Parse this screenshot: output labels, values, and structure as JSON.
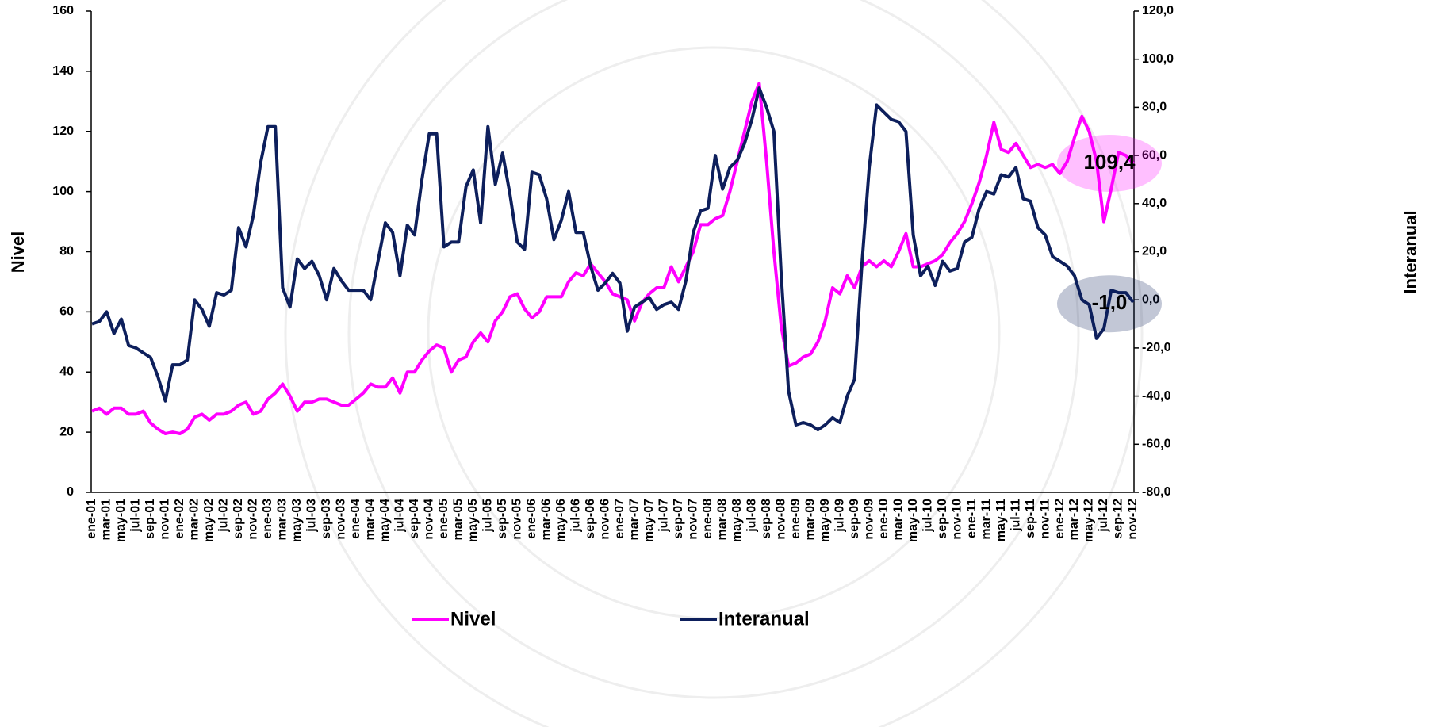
{
  "chart_data": {
    "type": "line",
    "ylabel": "Nivel",
    "y2label": "Interanual",
    "categories": [
      "ene-01",
      null,
      "mar-01",
      null,
      "may-01",
      null,
      "jul-01",
      null,
      "sep-01",
      null,
      "nov-01",
      null,
      "ene-02",
      null,
      "mar-02",
      null,
      "may-02",
      null,
      "jul-02",
      null,
      "sep-02",
      null,
      "nov-02",
      null,
      "ene-03",
      null,
      "mar-03",
      null,
      "may-03",
      null,
      "jul-03",
      null,
      "sep-03",
      null,
      "nov-03",
      null,
      "ene-04",
      null,
      "mar-04",
      null,
      "may-04",
      null,
      "jul-04",
      null,
      "sep-04",
      null,
      "nov-04",
      null,
      "ene-05",
      null,
      "mar-05",
      null,
      "may-05",
      null,
      "jul-05",
      null,
      "sep-05",
      null,
      "nov-05",
      null,
      "ene-06",
      null,
      "mar-06",
      null,
      "may-06",
      null,
      "jul-06",
      null,
      "sep-06",
      null,
      "nov-06",
      null,
      "ene-07",
      null,
      "mar-07",
      null,
      "may-07",
      null,
      "jul-07",
      null,
      "sep-07",
      null,
      "nov-07",
      null,
      "ene-08",
      null,
      "mar-08",
      null,
      "may-08",
      null,
      "jul-08",
      null,
      "sep-08",
      null,
      "nov-08",
      null,
      "ene-09",
      null,
      "mar-09",
      null,
      "may-09",
      null,
      "jul-09",
      null,
      "sep-09",
      null,
      "nov-09",
      null,
      "ene-10",
      null,
      "mar-10",
      null,
      "may-10",
      null,
      "jul-10",
      null,
      "sep-10",
      null,
      "nov-10",
      null,
      "ene-11",
      null,
      "mar-11",
      null,
      "may-11",
      null,
      "jul-11",
      null,
      "sep-11",
      null,
      "nov-11",
      null,
      "ene-12",
      null,
      "mar-12",
      null,
      "may-12",
      null,
      "jul-12",
      null,
      "sep-12",
      null,
      "nov-12"
    ],
    "ylim": [
      0,
      160
    ],
    "yticks": [
      0,
      20,
      40,
      60,
      80,
      100,
      120,
      140,
      160
    ],
    "y2lim": [
      -80,
      120
    ],
    "y2ticks": [
      {
        "value": -80,
        "label": "-80,0"
      },
      {
        "value": -60,
        "label": "-60,0"
      },
      {
        "value": -40,
        "label": "-40,0"
      },
      {
        "value": -20,
        "label": "-20,0"
      },
      {
        "value": 0,
        "label": "0,0"
      },
      {
        "value": 20,
        "label": "20,0"
      },
      {
        "value": 40,
        "label": "40,0"
      },
      {
        "value": 60,
        "label": "60,0"
      },
      {
        "value": 80,
        "label": "80,0"
      },
      {
        "value": 100,
        "label": "100,0"
      },
      {
        "value": 120,
        "label": "120,0"
      }
    ],
    "series": [
      {
        "name": "Nivel",
        "color": "#ff00ff",
        "axis": "y",
        "values": [
          27,
          28,
          26,
          28,
          28,
          26,
          26,
          27,
          23,
          21,
          19.5,
          20,
          19.5,
          21,
          25,
          26,
          24,
          26,
          26,
          27,
          29,
          30,
          26,
          27,
          31,
          33,
          36,
          32,
          27,
          30,
          30,
          31,
          31,
          30,
          29,
          29,
          31,
          33,
          36,
          35,
          35,
          38,
          33,
          40,
          40,
          44,
          47,
          49,
          48,
          40,
          44,
          45,
          50,
          53,
          50,
          57,
          60,
          65,
          66,
          61,
          58,
          60,
          65,
          65,
          65,
          70,
          73,
          72,
          76,
          73,
          70,
          66,
          65,
          64,
          57,
          63,
          66,
          68,
          68,
          75,
          70,
          75,
          80,
          89,
          89,
          91,
          92,
          100,
          110,
          120,
          130,
          136,
          110,
          80,
          55,
          42,
          43,
          45,
          46,
          50,
          57,
          68,
          66,
          72,
          68,
          75,
          77,
          75,
          77,
          75,
          80,
          86,
          75,
          75,
          76,
          77,
          79,
          83,
          86,
          90,
          96,
          103,
          112,
          123,
          114,
          113,
          116,
          112,
          108,
          109,
          108,
          109,
          106,
          110,
          118,
          125,
          120,
          110,
          90,
          101,
          113,
          112,
          109.4
        ],
        "value_labels": [
          null,
          null,
          null,
          null,
          null,
          null,
          null,
          null,
          null,
          null,
          null,
          null,
          null,
          null,
          null,
          null,
          null,
          null,
          null,
          null,
          null,
          null,
          null,
          null,
          null,
          null,
          null,
          null,
          null,
          null,
          null,
          null,
          null,
          null,
          null,
          null,
          null,
          null,
          null,
          null,
          null,
          null,
          null,
          null,
          null,
          null,
          null,
          null,
          null,
          null,
          null,
          null,
          null,
          null,
          null,
          null,
          null,
          null,
          null,
          null,
          null,
          null,
          null,
          null,
          null,
          null,
          null,
          null,
          null,
          null,
          null,
          null,
          null,
          null,
          null,
          null,
          null,
          null,
          null,
          null,
          null,
          null,
          null,
          null,
          null,
          null,
          null,
          null,
          null,
          null,
          null,
          null,
          null,
          null,
          null,
          null,
          null,
          null,
          null,
          null,
          null,
          null,
          null,
          null,
          null,
          null,
          null,
          null,
          null,
          null,
          null,
          null,
          null,
          null,
          null,
          null,
          null,
          null,
          null,
          null,
          null,
          null,
          null,
          null,
          null,
          null,
          null,
          null,
          null,
          null,
          null,
          null,
          null,
          null,
          null,
          null,
          null,
          null,
          null,
          null,
          null,
          null,
          "109,4"
        ]
      },
      {
        "name": "Interanual",
        "color": "#0d1f5c",
        "axis": "y2",
        "values": [
          -10,
          -9,
          -5,
          -14,
          -8,
          -19,
          -20,
          -22,
          -24,
          -32,
          -42,
          -27,
          -27,
          -25,
          0,
          -4,
          -11,
          3,
          2,
          4,
          30,
          22,
          35,
          57,
          72,
          72,
          5,
          -3,
          17,
          13,
          16,
          10,
          0,
          13,
          8,
          4,
          4,
          4,
          0,
          16,
          32,
          28,
          10,
          31,
          27,
          50,
          69,
          69,
          22,
          24,
          24,
          47,
          54,
          32,
          72,
          48,
          61,
          44,
          24,
          21,
          53,
          52,
          42,
          25,
          33,
          45,
          28,
          28,
          14,
          4,
          7,
          11,
          7,
          -13,
          -3,
          -1,
          1,
          -4,
          -2,
          -1,
          -4,
          8,
          28,
          37,
          38,
          60,
          46,
          55,
          58,
          65,
          75,
          88,
          80,
          70,
          10,
          -38,
          -52,
          -51,
          -52,
          -54,
          -52,
          -49,
          -51,
          -40,
          -33,
          15,
          55,
          81,
          78,
          75,
          74,
          70,
          27,
          10,
          14,
          6,
          16,
          12,
          13,
          24,
          26,
          38,
          45,
          44,
          52,
          51,
          55,
          42,
          41,
          30,
          27,
          18,
          16,
          14,
          10,
          0,
          -2,
          -16,
          -12,
          4,
          3,
          3,
          -1
        ],
        "value_labels": [
          null,
          null,
          null,
          null,
          null,
          null,
          null,
          null,
          null,
          null,
          null,
          null,
          null,
          null,
          null,
          null,
          null,
          null,
          null,
          null,
          null,
          null,
          null,
          null,
          null,
          null,
          null,
          null,
          null,
          null,
          null,
          null,
          null,
          null,
          null,
          null,
          null,
          null,
          null,
          null,
          null,
          null,
          null,
          null,
          null,
          null,
          null,
          null,
          null,
          null,
          null,
          null,
          null,
          null,
          null,
          null,
          null,
          null,
          null,
          null,
          null,
          null,
          null,
          null,
          null,
          null,
          null,
          null,
          null,
          null,
          null,
          null,
          null,
          null,
          null,
          null,
          null,
          null,
          null,
          null,
          null,
          null,
          null,
          null,
          null,
          null,
          null,
          null,
          null,
          null,
          null,
          null,
          null,
          null,
          null,
          null,
          null,
          null,
          null,
          null,
          null,
          null,
          null,
          null,
          null,
          null,
          null,
          null,
          null,
          null,
          null,
          null,
          null,
          null,
          null,
          null,
          null,
          null,
          null,
          null,
          null,
          null,
          null,
          null,
          null,
          null,
          null,
          null,
          null,
          null,
          null,
          null,
          null,
          null,
          null,
          null,
          null,
          null,
          null,
          null,
          null,
          null,
          "-1,0"
        ]
      }
    ]
  }
}
